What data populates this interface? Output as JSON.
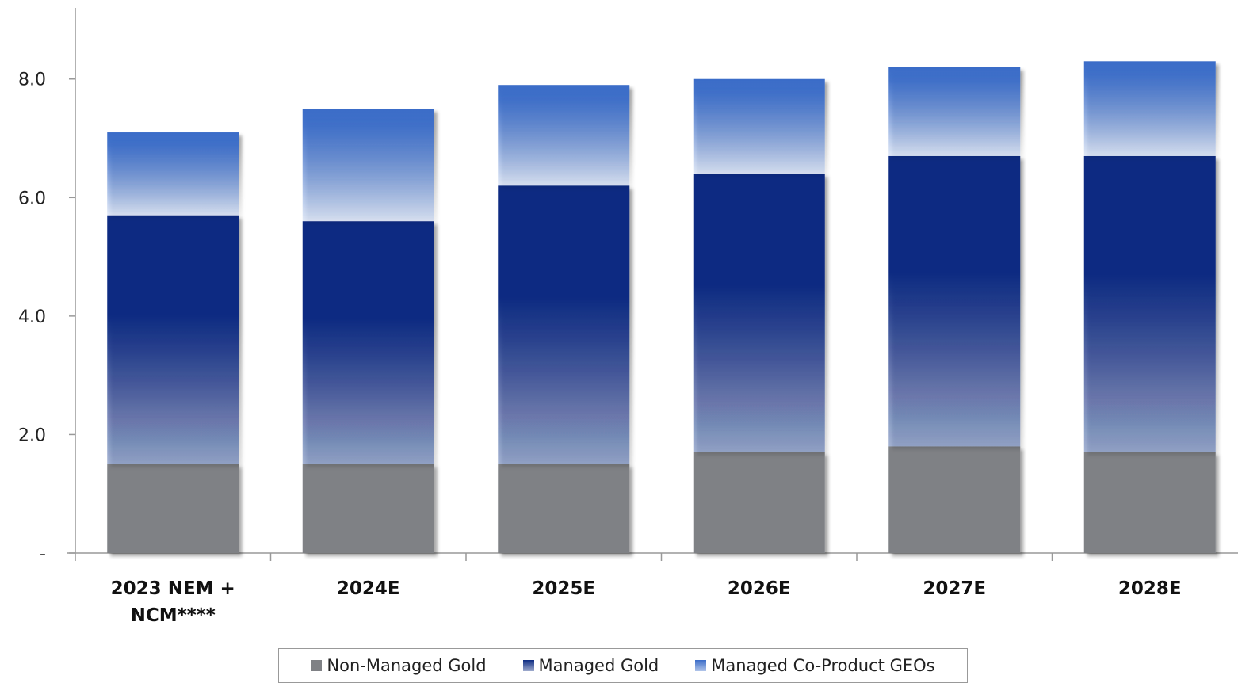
{
  "chart_data": {
    "type": "stacked_bar",
    "categories": [
      "2023 NEM + NCM****",
      "2024E",
      "2025E",
      "2026E",
      "2027E",
      "2028E"
    ],
    "series": [
      {
        "name": "Non-Managed Gold",
        "color": "#7f8185",
        "values": [
          1.5,
          1.5,
          1.5,
          1.7,
          1.8,
          1.7
        ]
      },
      {
        "name": "Managed Gold",
        "color": "#0d2b82",
        "values": [
          4.2,
          4.1,
          4.7,
          4.7,
          4.9,
          5.0
        ]
      },
      {
        "name": "Managed Co-Product GEOs",
        "color": "#3a6cc8",
        "values": [
          1.4,
          1.9,
          1.7,
          1.6,
          1.5,
          1.6
        ]
      }
    ],
    "ylim": [
      0,
      9.2
    ],
    "yticks": [
      {
        "value": 0,
        "label": "-"
      },
      {
        "value": 2,
        "label": "2.0"
      },
      {
        "value": 4,
        "label": "4.0"
      },
      {
        "value": 6,
        "label": "6.0"
      },
      {
        "value": 8,
        "label": "8.0"
      }
    ],
    "legend": "bottom"
  }
}
